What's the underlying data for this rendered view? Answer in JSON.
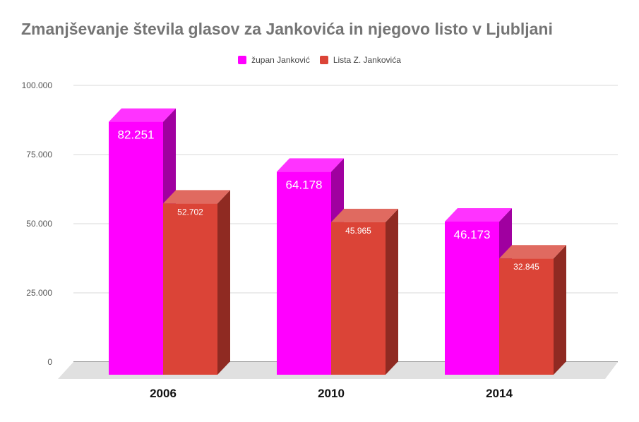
{
  "chart_data": {
    "type": "bar",
    "title": "Zmanjševanje števila glasov za Jankovića in njegovo listo v Ljubljani",
    "categories": [
      "2006",
      "2010",
      "2014"
    ],
    "series": [
      {
        "name": "župan Janković",
        "values": [
          82251,
          64178,
          46173
        ],
        "labels": [
          "82.251",
          "64.178",
          "46.173"
        ],
        "color": "#ff00ff"
      },
      {
        "name": "Lista Z. Jankovića",
        "values": [
          52702,
          45965,
          32845
        ],
        "labels": [
          "52.702",
          "45.965",
          "32.845"
        ],
        "color": "#db4437"
      }
    ],
    "yticks": [
      0,
      25000,
      50000,
      75000,
      100000
    ],
    "yticklabels": [
      "0",
      "25.000",
      "50.000",
      "75.000",
      "100.000"
    ],
    "ylim": [
      0,
      100000
    ],
    "grid": true,
    "legend_position": "top",
    "style": "3d"
  }
}
